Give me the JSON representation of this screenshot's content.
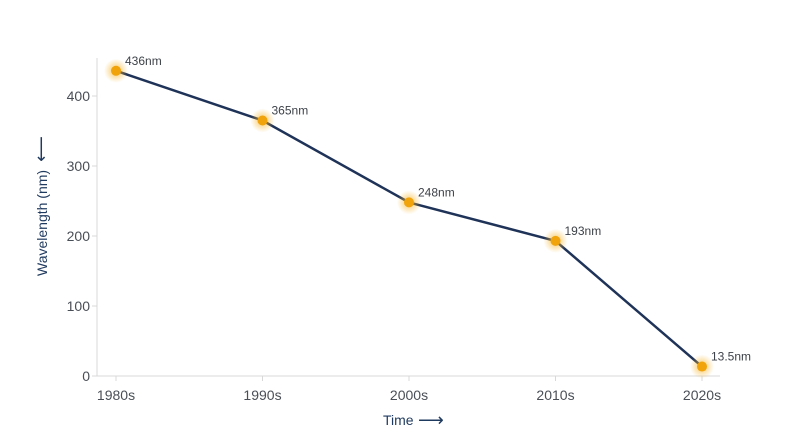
{
  "chart_data": {
    "type": "line",
    "title": "",
    "xlabel": "Time",
    "xlabel_arrow": "⟶",
    "ylabel": "Wavelength (nm)",
    "ylabel_arrow": "⟵",
    "categories": [
      "1980s",
      "1990s",
      "2000s",
      "2010s",
      "2020s"
    ],
    "series": [
      {
        "values": [
          436,
          365,
          248,
          193,
          13.5
        ],
        "labels": [
          "436nm",
          "365nm",
          "248nm",
          "193nm",
          "13.5nm"
        ]
      }
    ],
    "y_ticks": [
      "0",
      "100",
      "200",
      "300",
      "400"
    ],
    "ylim": [
      0,
      450
    ],
    "grid": false,
    "line_color": "#1f3358",
    "marker_color": "#f0a30a",
    "marker_glow_color": "#f7b733",
    "axis_color": "#d8d8d8"
  }
}
